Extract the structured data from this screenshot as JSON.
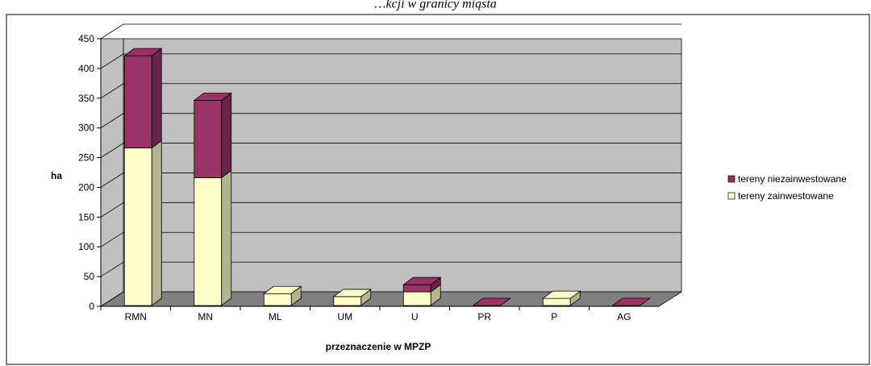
{
  "chart_data": {
    "type": "bar",
    "stacked": true,
    "three_d": true,
    "title": "…kcji w granicy miąsta",
    "xlabel": "przeznaczenie w MPZP",
    "ylabel": "ha",
    "categories": [
      "RMN",
      "MN",
      "ML",
      "UM",
      "U",
      "PR",
      "P",
      "AG"
    ],
    "series": [
      {
        "name": "tereny zainwestowane",
        "color": "#ffffcc",
        "side_color": "#b3b38f",
        "values": [
          265,
          215,
          20,
          15,
          23,
          0,
          12,
          0
        ]
      },
      {
        "name": "tereny niezainwestowane",
        "color": "#993366",
        "side_color": "#6b2447",
        "values": [
          155,
          130,
          0,
          0,
          12,
          0,
          0,
          0
        ]
      }
    ],
    "ylim": [
      0,
      450
    ],
    "yticks": [
      0,
      50,
      100,
      150,
      200,
      250,
      300,
      350,
      400,
      450
    ],
    "grid": true,
    "legend_position": "right",
    "wall_color": "#c0c0c0",
    "floor_color": "#808080"
  }
}
